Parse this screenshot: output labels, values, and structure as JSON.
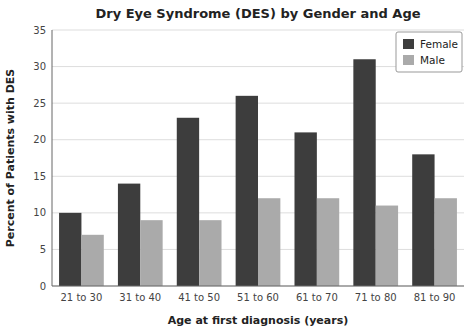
{
  "chart_data": {
    "type": "bar",
    "title": "Dry Eye Syndrome (DES) by Gender and Age",
    "xlabel": "Age at first diagnosis (years)",
    "ylabel": "Percent of Patients with DES",
    "categories": [
      "21 to 30",
      "31 to 40",
      "41 to 50",
      "51 to 60",
      "61 to 70",
      "71 to 80",
      "81 to 90"
    ],
    "series": [
      {
        "name": "Female",
        "color": "#3d3d3d",
        "values": [
          10,
          14,
          23,
          26,
          21,
          31,
          18
        ]
      },
      {
        "name": "Male",
        "color": "#aaaaaa",
        "values": [
          7,
          9,
          9,
          12,
          12,
          11,
          12
        ]
      }
    ],
    "ylim": [
      0,
      35
    ],
    "yticks": [
      0,
      5,
      10,
      15,
      20,
      25,
      30,
      35
    ],
    "grid": true,
    "legend": "upper right"
  }
}
